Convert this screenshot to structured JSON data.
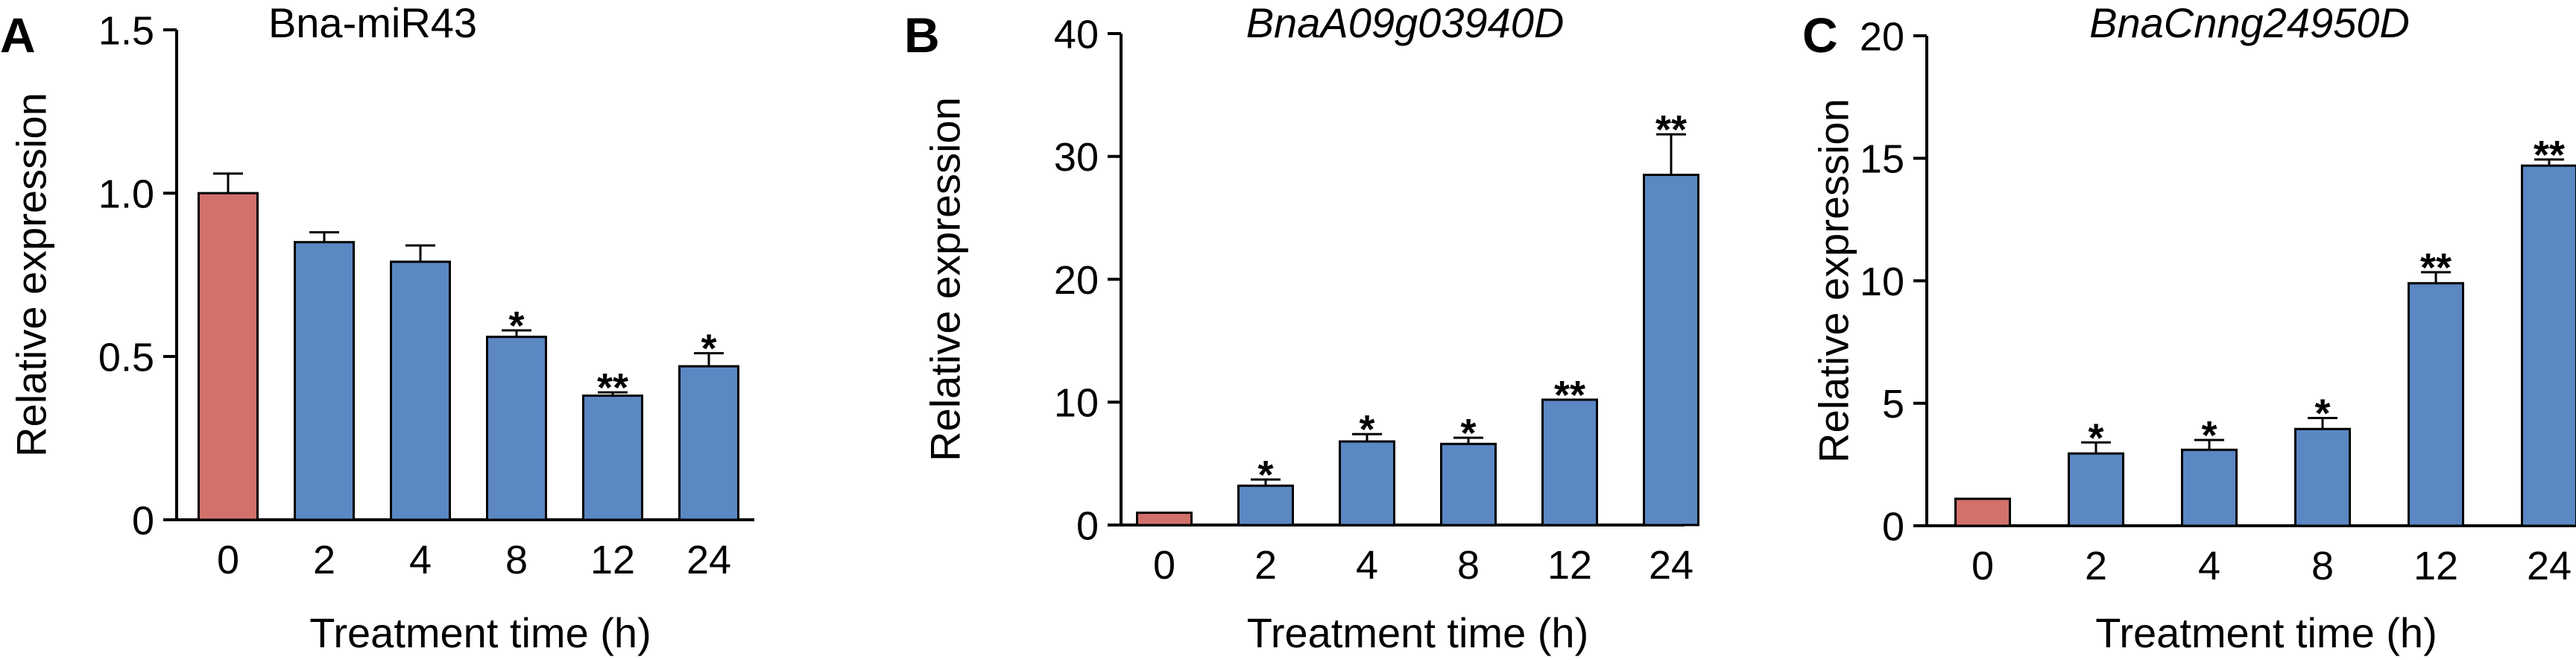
{
  "colors": {
    "control": "#D2716B",
    "treatment": "#5B87C3",
    "axis": "#000000"
  },
  "chart_data": [
    {
      "panel": "A",
      "type": "bar",
      "title": "Bna-miR43",
      "title_italic": false,
      "xlabel": "Treatment time (h)",
      "ylabel": "Relative expression",
      "categories": [
        "0",
        "2",
        "4",
        "8",
        "12",
        "24"
      ],
      "values": [
        1.0,
        0.85,
        0.79,
        0.56,
        0.38,
        0.47
      ],
      "errors": [
        0.06,
        0.03,
        0.05,
        0.02,
        0.01,
        0.04
      ],
      "significance": [
        "",
        "",
        "",
        "*",
        "**",
        "*"
      ],
      "ylim": [
        0,
        1.5
      ],
      "yticks": [
        0,
        0.5,
        1.0,
        1.5
      ],
      "ytick_labels": [
        "0",
        "0.5",
        "1.0",
        "1.5"
      ],
      "bar_colors": [
        "control",
        "treatment",
        "treatment",
        "treatment",
        "treatment",
        "treatment"
      ],
      "grid": false,
      "legend": "none"
    },
    {
      "panel": "B",
      "type": "bar",
      "title": "BnaA09g03940D",
      "title_italic": true,
      "xlabel": "Treatment time (h)",
      "ylabel": "Relative expression",
      "categories": [
        "0",
        "2",
        "4",
        "8",
        "12",
        "24"
      ],
      "values": [
        1.0,
        3.2,
        6.8,
        6.6,
        10.2,
        28.5
      ],
      "errors": [
        0,
        0.5,
        0.6,
        0.5,
        0,
        3.3
      ],
      "significance": [
        "",
        "*",
        "*",
        "*",
        "**",
        "**"
      ],
      "ylim": [
        0,
        40
      ],
      "yticks": [
        0,
        10,
        20,
        30,
        40
      ],
      "ytick_labels": [
        "0",
        "10",
        "20",
        "30",
        "40"
      ],
      "bar_colors": [
        "control",
        "treatment",
        "treatment",
        "treatment",
        "treatment",
        "treatment"
      ],
      "grid": false,
      "legend": "none"
    },
    {
      "panel": "C",
      "type": "bar",
      "title": "BnaCnng24950D",
      "title_italic": true,
      "xlabel": "Treatment time (h)",
      "ylabel": "Relative expression",
      "categories": [
        "0",
        "2",
        "4",
        "8",
        "12",
        "24"
      ],
      "values": [
        1.1,
        2.95,
        3.1,
        3.95,
        9.9,
        14.7
      ],
      "errors": [
        0,
        0.45,
        0.4,
        0.45,
        0.45,
        0.25
      ],
      "significance": [
        "",
        "*",
        "*",
        "*",
        "**",
        "**"
      ],
      "ylim": [
        0,
        20
      ],
      "yticks": [
        0,
        5,
        10,
        15,
        20
      ],
      "ytick_labels": [
        "0",
        "5",
        "10",
        "15",
        "20"
      ],
      "bar_colors": [
        "control",
        "treatment",
        "treatment",
        "treatment",
        "treatment",
        "treatment"
      ],
      "grid": false,
      "legend": "none"
    }
  ]
}
